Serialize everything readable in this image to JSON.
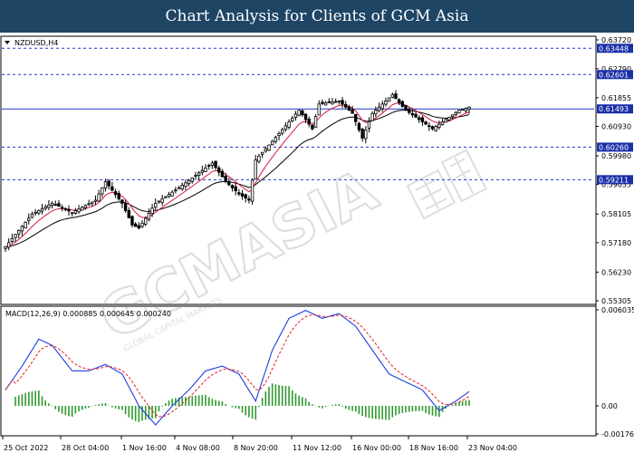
{
  "page": {
    "title": "Chart Analysis for Clients of GCM Asia"
  },
  "watermark": {
    "brand": "GCMASIA",
    "tagline": "GLOBAL CAPITAL MARKETS"
  },
  "chart_data": {
    "type": "candlestick",
    "symbol": "NZDUSD,H4",
    "y_range": [
      0.55305,
      0.6372
    ],
    "y_ticks": [
      "0.63720",
      "0.62790",
      "0.61855",
      "0.60930",
      "0.59980",
      "0.59055",
      "0.58105",
      "0.57180",
      "0.56230",
      "0.55305"
    ],
    "x_labels": [
      "25 Oct 2022",
      "28 Oct 04:00",
      "1 Nov 16:00",
      "4 Nov 08:00",
      "8 Nov 20:00",
      "11 Nov 12:00",
      "16 Nov 00:00",
      "18 Nov 16:00",
      "23 Nov 04:00"
    ],
    "levels": [
      {
        "label": "0.63448",
        "value": 0.63448,
        "dashed": true
      },
      {
        "label": "0.62601",
        "value": 0.62601,
        "dashed": true
      },
      {
        "label": "0.61493",
        "value": 0.61493,
        "dashed": false
      },
      {
        "label": "0.60260",
        "value": 0.6026,
        "dashed": true
      },
      {
        "label": "0.59211",
        "value": 0.59211,
        "dashed": true
      }
    ],
    "anchors": [
      [
        0,
        0.5705
      ],
      [
        8,
        0.581
      ],
      [
        14,
        0.5845
      ],
      [
        20,
        0.5815
      ],
      [
        27,
        0.5855
      ],
      [
        30,
        0.5915
      ],
      [
        35,
        0.5845
      ],
      [
        38,
        0.5775
      ],
      [
        40,
        0.5765
      ],
      [
        45,
        0.5845
      ],
      [
        52,
        0.5895
      ],
      [
        57,
        0.5935
      ],
      [
        62,
        0.5975
      ],
      [
        66,
        0.5915
      ],
      [
        70,
        0.5875
      ],
      [
        73,
        0.5855
      ],
      [
        75,
        0.5985
      ],
      [
        80,
        0.6045
      ],
      [
        84,
        0.6095
      ],
      [
        88,
        0.6145
      ],
      [
        92,
        0.6085
      ],
      [
        94,
        0.6165
      ],
      [
        100,
        0.6175
      ],
      [
        104,
        0.6135
      ],
      [
        107,
        0.6055
      ],
      [
        110,
        0.6135
      ],
      [
        114,
        0.6175
      ],
      [
        116,
        0.6195
      ],
      [
        120,
        0.6145
      ],
      [
        124,
        0.6115
      ],
      [
        128,
        0.6085
      ],
      [
        132,
        0.6115
      ],
      [
        136,
        0.6145
      ],
      [
        139,
        0.6155
      ]
    ],
    "macd": {
      "label": "MACD(12,26,9) 0.000885 0.000645 0.000240",
      "y_range": [
        -0.001768,
        0.006035
      ],
      "y_ticks": [
        "0.006035",
        "0.00",
        "-0.001768"
      ],
      "main_anchors": [
        [
          0,
          0.001
        ],
        [
          5,
          0.0025
        ],
        [
          10,
          0.0042
        ],
        [
          14,
          0.0038
        ],
        [
          20,
          0.0022
        ],
        [
          25,
          0.0022
        ],
        [
          30,
          0.0026
        ],
        [
          35,
          0.002
        ],
        [
          40,
          0.0
        ],
        [
          45,
          -0.0012
        ],
        [
          50,
          0.0
        ],
        [
          55,
          0.001
        ],
        [
          60,
          0.0022
        ],
        [
          65,
          0.0025
        ],
        [
          70,
          0.002
        ],
        [
          75,
          0.0003
        ],
        [
          80,
          0.0035
        ],
        [
          85,
          0.0055
        ],
        [
          90,
          0.006
        ],
        [
          95,
          0.0055
        ],
        [
          100,
          0.0058
        ],
        [
          105,
          0.005
        ],
        [
          110,
          0.0035
        ],
        [
          115,
          0.002
        ],
        [
          120,
          0.0015
        ],
        [
          125,
          0.001
        ],
        [
          130,
          -0.0003
        ],
        [
          135,
          0.0003
        ],
        [
          139,
          0.0009
        ]
      ]
    }
  }
}
